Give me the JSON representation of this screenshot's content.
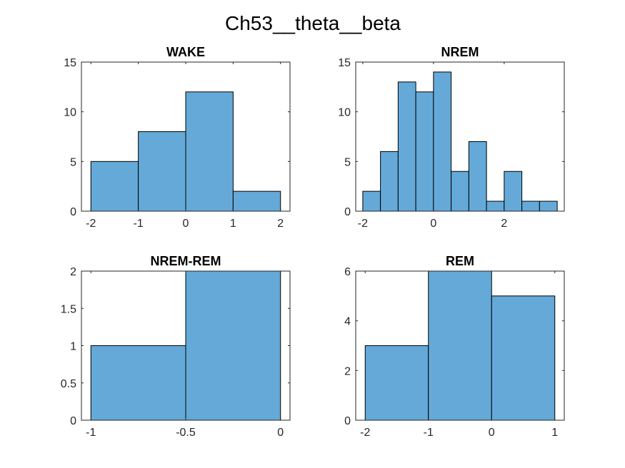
{
  "figure": {
    "title": "Ch53__theta__beta"
  },
  "chart_data": [
    {
      "type": "bar",
      "title": "WAKE",
      "bin_edges": [
        -2,
        -1,
        0,
        1,
        2
      ],
      "values": [
        5,
        8,
        12,
        2
      ],
      "xlim": [
        -2.2,
        2.2
      ],
      "ylim": [
        0,
        15
      ],
      "xticks": [
        -2,
        -1,
        0,
        1,
        2
      ],
      "xtick_labels": [
        "-2",
        "-1",
        "0",
        "1",
        "2"
      ],
      "yticks": [
        0,
        5,
        10,
        15
      ],
      "ytick_labels": [
        "0",
        "5",
        "10",
        "15"
      ],
      "bar_color": "#64a9d8"
    },
    {
      "type": "bar",
      "title": "NREM",
      "bin_edges": [
        -2,
        -1.5,
        -1,
        -0.5,
        0,
        0.5,
        1,
        1.5,
        2,
        2.5,
        3,
        3.5
      ],
      "values": [
        2,
        6,
        13,
        12,
        14,
        4,
        7,
        1,
        4,
        1,
        1
      ],
      "xlim": [
        -2.2,
        3.7
      ],
      "ylim": [
        0,
        15
      ],
      "xticks": [
        -2,
        0,
        2
      ],
      "xtick_labels": [
        "-2",
        "0",
        "2"
      ],
      "yticks": [
        0,
        5,
        10,
        15
      ],
      "ytick_labels": [
        "0",
        "5",
        "10",
        "15"
      ],
      "bar_color": "#64a9d8"
    },
    {
      "type": "bar",
      "title": "NREM-REM",
      "bin_edges": [
        -1,
        -0.5,
        0
      ],
      "values": [
        1,
        2
      ],
      "xlim": [
        -1.05,
        0.05
      ],
      "ylim": [
        0,
        2
      ],
      "xticks": [
        -1,
        -0.5,
        0
      ],
      "xtick_labels": [
        "-1",
        "-0.5",
        "0"
      ],
      "yticks": [
        0,
        0.5,
        1,
        1.5,
        2
      ],
      "ytick_labels": [
        "0",
        "0.5",
        "1",
        "1.5",
        "2"
      ],
      "bar_color": "#64a9d8"
    },
    {
      "type": "bar",
      "title": "REM",
      "bin_edges": [
        -2,
        -1,
        0,
        1
      ],
      "values": [
        3,
        6,
        5
      ],
      "xlim": [
        -2.15,
        1.15
      ],
      "ylim": [
        0,
        6
      ],
      "xticks": [
        -2,
        -1,
        0,
        1
      ],
      "xtick_labels": [
        "-2",
        "-1",
        "0",
        "1"
      ],
      "yticks": [
        0,
        2,
        4,
        6
      ],
      "ytick_labels": [
        "0",
        "2",
        "4",
        "6"
      ],
      "bar_color": "#64a9d8"
    }
  ]
}
